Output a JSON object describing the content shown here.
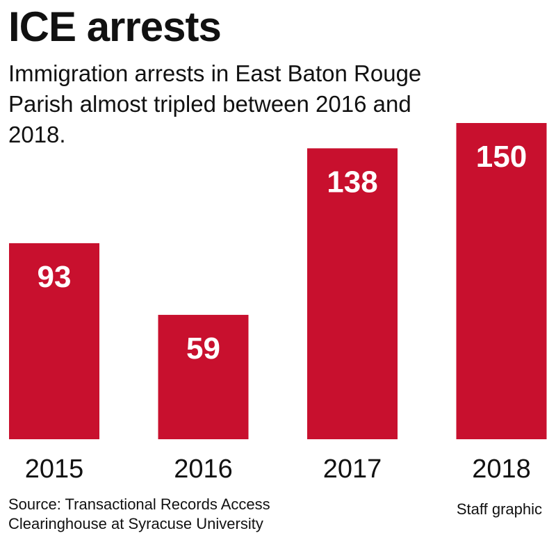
{
  "chart_data": {
    "type": "bar",
    "title": "ICE arrests",
    "subtitle": "Immigration arrests in East Baton Rouge Parish almost tripled between 2016 and 2018.",
    "categories": [
      "2015",
      "2016",
      "2017",
      "2018"
    ],
    "values": [
      93,
      59,
      138,
      150
    ],
    "xlabel": "",
    "ylabel": "",
    "ylim": [
      0,
      150
    ],
    "grid": false,
    "legend": "none",
    "bar_color": "#c8102e",
    "label_color": "#ffffff"
  },
  "footer": {
    "source": "Source: Transactional Records Access Clearinghouse at Syracuse University",
    "credit": "Staff graphic"
  }
}
